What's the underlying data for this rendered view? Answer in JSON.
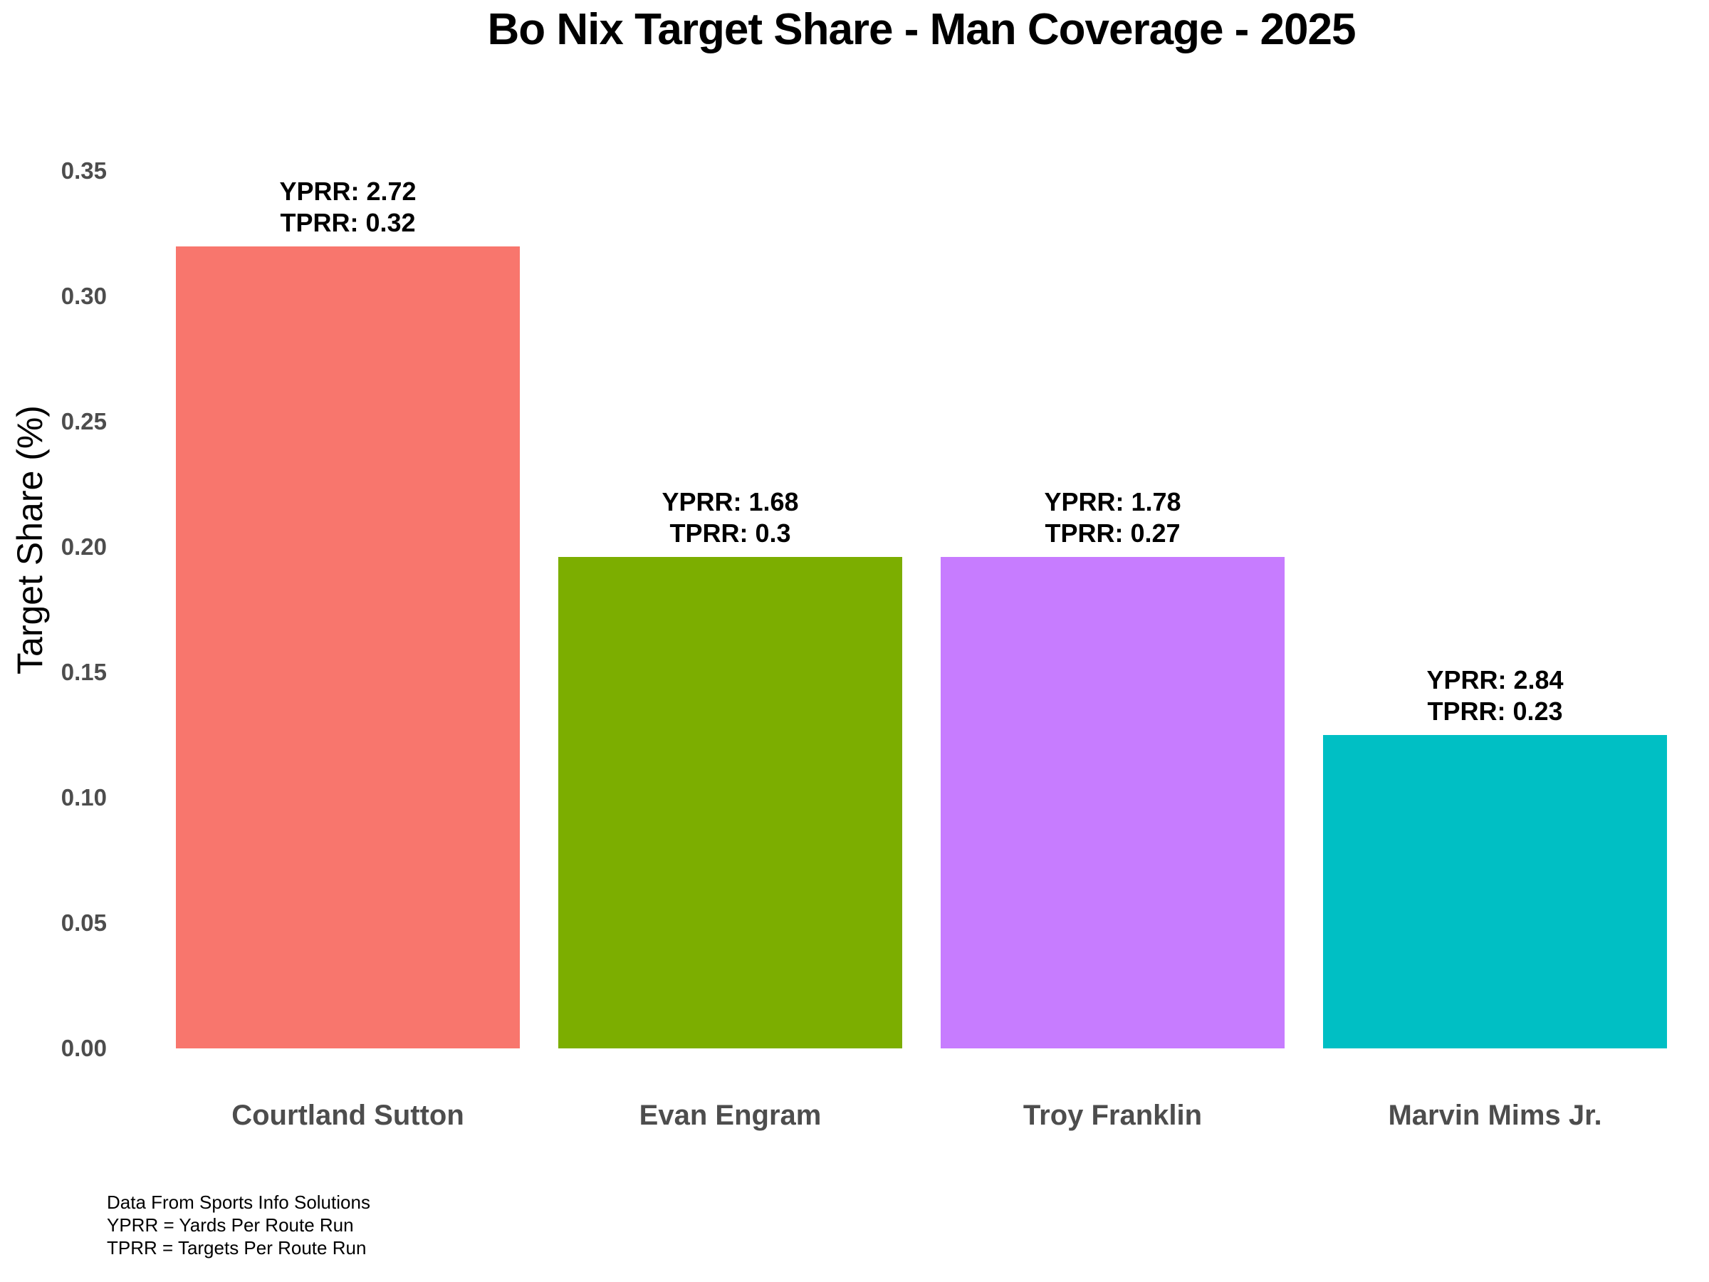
{
  "page": {
    "background": "#ffffff"
  },
  "chart_data": {
    "type": "bar",
    "title": "Bo Nix Target Share - Man Coverage - 2025",
    "ylabel": "Target Share (%)",
    "xlabel": "",
    "categories": [
      "Courtland Sutton",
      "Evan Engram",
      "Troy Franklin",
      "Marvin Mims Jr."
    ],
    "values": [
      0.32,
      0.196,
      0.196,
      0.125
    ],
    "bar_colors": [
      "#F8766D",
      "#7CAE00",
      "#C77CFF",
      "#00BFC4"
    ],
    "bar_annotations": [
      {
        "lines": [
          "YPRR: 2.72",
          "TPRR: 0.32"
        ],
        "yprr": 2.72,
        "tprr": 0.32
      },
      {
        "lines": [
          "YPRR: 1.68",
          "TPRR: 0.3"
        ],
        "yprr": 1.68,
        "tprr": 0.3
      },
      {
        "lines": [
          "YPRR: 1.78",
          "TPRR: 0.27"
        ],
        "yprr": 1.78,
        "tprr": 0.27
      },
      {
        "lines": [
          "YPRR: 2.84",
          "TPRR: 0.23"
        ],
        "yprr": 2.84,
        "tprr": 0.23
      }
    ],
    "yticks": [
      0.0,
      0.05,
      0.1,
      0.15,
      0.2,
      0.25,
      0.3,
      0.35
    ],
    "ytick_labels": [
      "0.00",
      "0.05",
      "0.10",
      "0.15",
      "0.20",
      "0.25",
      "0.30",
      "0.35"
    ],
    "ylim": [
      0,
      0.35
    ],
    "grid": false,
    "legend": "none",
    "bar_width_fraction": 0.9,
    "axis_text_color": "#4d4d4d",
    "text_color": "#000000"
  },
  "caption": {
    "lines": [
      "Data From Sports Info Solutions",
      "YPRR = Yards Per Route Run",
      "TPRR = Targets Per Route Run"
    ]
  }
}
